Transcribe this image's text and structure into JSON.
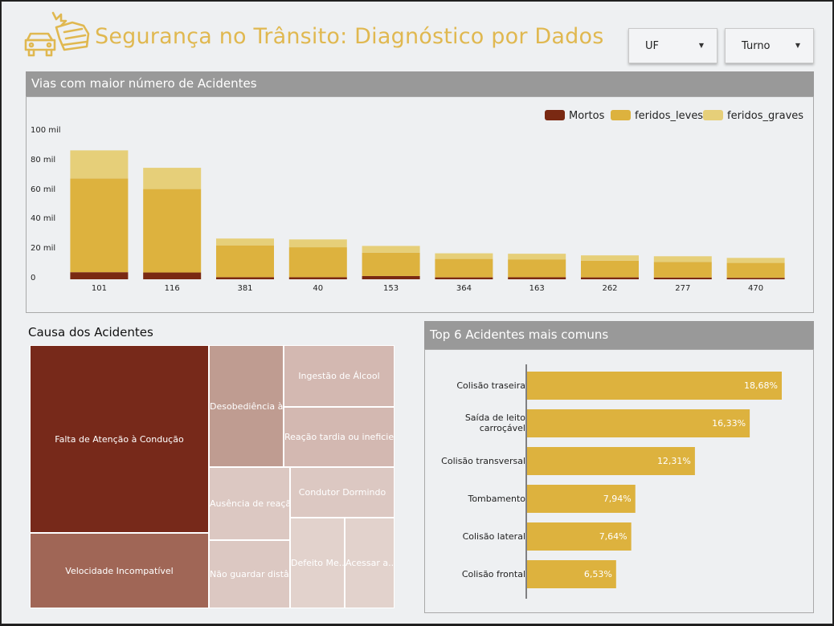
{
  "header": {
    "title": "Segurança no Trânsito: Diagnóstico por Dados",
    "logo_icon": "car-crash-icon",
    "filters": [
      {
        "label": "UF"
      },
      {
        "label": "Turno"
      }
    ]
  },
  "colors": {
    "mortos": "#7a2912",
    "feridos_leves": "#ddb23e",
    "feridos_graves": "#e6cf79",
    "accent_title": "#e0b850",
    "panel_header": "#999999",
    "hbar": "#ddb23e"
  },
  "vias_panel": {
    "title": "Vias com maior número de Acidentes"
  },
  "causa_section": {
    "title": "Causa dos Acidentes"
  },
  "top6_panel": {
    "title": "Top 6 Acidentes mais comuns"
  },
  "chart_data": [
    {
      "type": "bar",
      "stacked": true,
      "title": "Vias com maior número de Acidentes",
      "categories": [
        "101",
        "116",
        "381",
        "40",
        "153",
        "364",
        "163",
        "262",
        "277",
        "470"
      ],
      "series": [
        {
          "name": "Mortos",
          "values": [
            4800,
            4600,
            1400,
            1400,
            2200,
            1300,
            1400,
            1300,
            1200,
            1000
          ]
        },
        {
          "name": "feridos_leves",
          "values": [
            63500,
            56500,
            21600,
            20300,
            15800,
            12500,
            12100,
            11300,
            10600,
            10100
          ]
        },
        {
          "name": "feridos_graves",
          "values": [
            19000,
            14400,
            4600,
            5300,
            4600,
            3800,
            3800,
            3600,
            3800,
            3400
          ]
        }
      ],
      "yticks": [
        "0",
        "20 mil",
        "40 mil",
        "60 mil",
        "80 mil",
        "100 mil"
      ],
      "ylim": [
        0,
        100000
      ],
      "legend_position": "top-right",
      "grid": false
    },
    {
      "type": "treemap",
      "title": "Causa dos Acidentes",
      "cells": [
        {
          "label": "Falta de Atenção à Condução",
          "color": "#77291a"
        },
        {
          "label": "Velocidade Incompatível",
          "color": "#a06656"
        },
        {
          "label": "Desobediência à...",
          "color": "#bf9c91"
        },
        {
          "label": "Ingestão de Álcool",
          "color": "#d3b8b1"
        },
        {
          "label": "Reação tardia ou ineficie...",
          "color": "#d3b8b1"
        },
        {
          "label": "Ausência de reaçã...",
          "color": "#dcc8c2"
        },
        {
          "label": "Condutor Dormindo",
          "color": "#dcc8c2"
        },
        {
          "label": "Não guardar distâ...",
          "color": "#dcc8c2"
        },
        {
          "label": "Defeito Me...",
          "color": "#e2d2cc"
        },
        {
          "label": "Acessar a...",
          "color": "#e2d2cc"
        }
      ]
    },
    {
      "type": "bar",
      "orientation": "horizontal",
      "title": "Top 6 Acidentes mais comuns",
      "categories": [
        "Colisão traseira",
        "Saída de leito carroçável",
        "Colisão transversal",
        "Tombamento",
        "Colisão lateral",
        "Colisão frontal"
      ],
      "values": [
        18.68,
        16.33,
        12.31,
        7.94,
        7.64,
        6.53
      ],
      "value_labels": [
        "18,68%",
        "16,33%",
        "12,31%",
        "7,94%",
        "7,64%",
        "6,53%"
      ],
      "unit": "%"
    }
  ]
}
